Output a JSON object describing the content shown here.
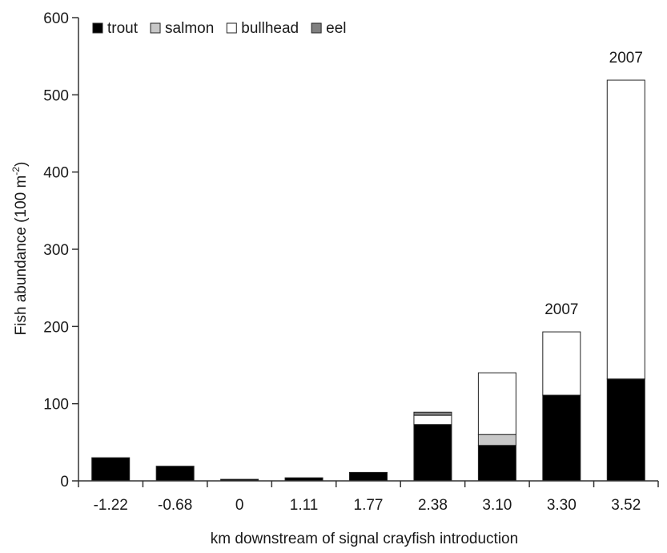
{
  "chart_data": {
    "type": "bar",
    "stacked": true,
    "categories": [
      "-1.22",
      "-0.68",
      "0",
      "1.11",
      "1.77",
      "2.38",
      "3.10",
      "3.30",
      "3.52"
    ],
    "series": [
      {
        "name": "trout",
        "color": "#000000",
        "values": [
          30,
          19,
          2,
          4,
          11,
          73,
          46,
          111,
          132
        ]
      },
      {
        "name": "salmon",
        "color": "#c8c8c8",
        "values": [
          0,
          0,
          0,
          0,
          0,
          0,
          14,
          0,
          0
        ]
      },
      {
        "name": "bullhead",
        "color": "#ffffff",
        "values": [
          0,
          0,
          0,
          0,
          0,
          12,
          80,
          82,
          387
        ]
      },
      {
        "name": "eel",
        "color": "#808080",
        "values": [
          0,
          0,
          0,
          0,
          0,
          4,
          0,
          0,
          0
        ]
      }
    ],
    "xlabel": "km downstream of signal crayfish introduction",
    "ylabel": "Fish abundance (100 m",
    "ylabel_superscript": "-2",
    "ylabel_close": ")",
    "ylim": [
      0,
      600
    ],
    "yticks": [
      "0",
      "100",
      "200",
      "300",
      "400",
      "500",
      "600"
    ],
    "legend_position": "top-left",
    "grid": false,
    "annotations": [
      {
        "category": "3.30",
        "text": "2007"
      },
      {
        "category": "3.52",
        "text": "2007"
      }
    ]
  }
}
